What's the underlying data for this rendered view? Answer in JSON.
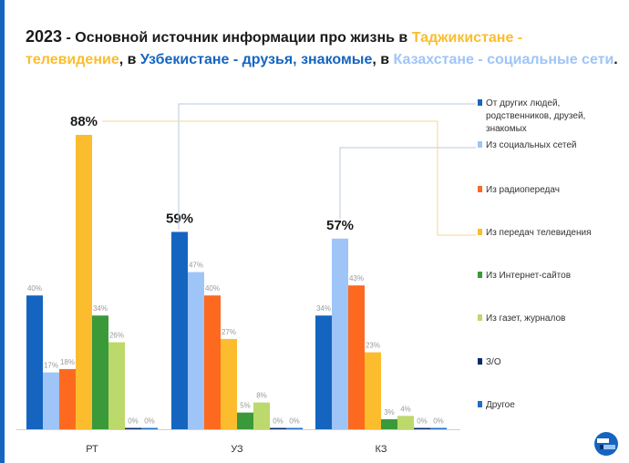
{
  "title": {
    "parts": [
      {
        "text": "2023",
        "color": "#1a1a1a",
        "big": true
      },
      {
        "text": " - Основной источник информации про жизнь в ",
        "color": "#1a1a1a"
      },
      {
        "text": "Таджикистане - телевидение",
        "color": "#fbbd2e"
      },
      {
        "text": ", в ",
        "color": "#1a1a1a"
      },
      {
        "text": "Узбекистане - друзья, знакомые",
        "color": "#1565c0"
      },
      {
        "text": ", в ",
        "color": "#1a1a1a"
      },
      {
        "text": "Казахстане - социальные сети",
        "color": "#9fc5f8"
      },
      {
        "text": ".",
        "color": "#1a1a1a"
      }
    ]
  },
  "accent_color": "#1565c0",
  "chart_data": {
    "type": "bar",
    "categories": [
      "РТ",
      "УЗ",
      "КЗ"
    ],
    "ylim": [
      0,
      100
    ],
    "grid": false,
    "legend_position": "right",
    "highlights": [
      "88%",
      "59%",
      "57%"
    ],
    "series": [
      {
        "name": "От других людей, родственников, друзей, знакомых",
        "color": "#1565c0",
        "values": [
          40,
          59,
          34
        ],
        "labels": [
          "40%",
          "",
          "34%"
        ]
      },
      {
        "name": "Из социальных сетей",
        "color": "#9fc5f8",
        "values": [
          17,
          47,
          57
        ],
        "labels": [
          "17%",
          "47%",
          ""
        ]
      },
      {
        "name": "Из радиопередач",
        "color": "#fd6a1f",
        "values": [
          18,
          40,
          43
        ],
        "labels": [
          "18%",
          "40%",
          "43%"
        ]
      },
      {
        "name": "Из передач телевидения",
        "color": "#fbbd2e",
        "values": [
          88,
          27,
          23
        ],
        "labels": [
          "",
          "27%",
          "23%"
        ]
      },
      {
        "name": "Из Интернет-сайтов",
        "color": "#3a9a3a",
        "values": [
          34,
          5,
          3
        ],
        "labels": [
          "34%",
          "5%",
          "3%"
        ]
      },
      {
        "name": "Из газет, журналов",
        "color": "#bcd96b",
        "values": [
          26,
          8,
          4
        ],
        "labels": [
          "26%",
          "8%",
          "4%"
        ]
      },
      {
        "name": "З/О",
        "color": "#0b2a6e",
        "values": [
          0,
          0,
          0
        ],
        "labels": [
          "0%",
          "0%",
          "0%"
        ]
      },
      {
        "name": "Другое",
        "color": "#1f6fc8",
        "values": [
          0,
          0,
          0
        ],
        "labels": [
          "0%",
          "0%",
          "0%"
        ]
      }
    ]
  }
}
